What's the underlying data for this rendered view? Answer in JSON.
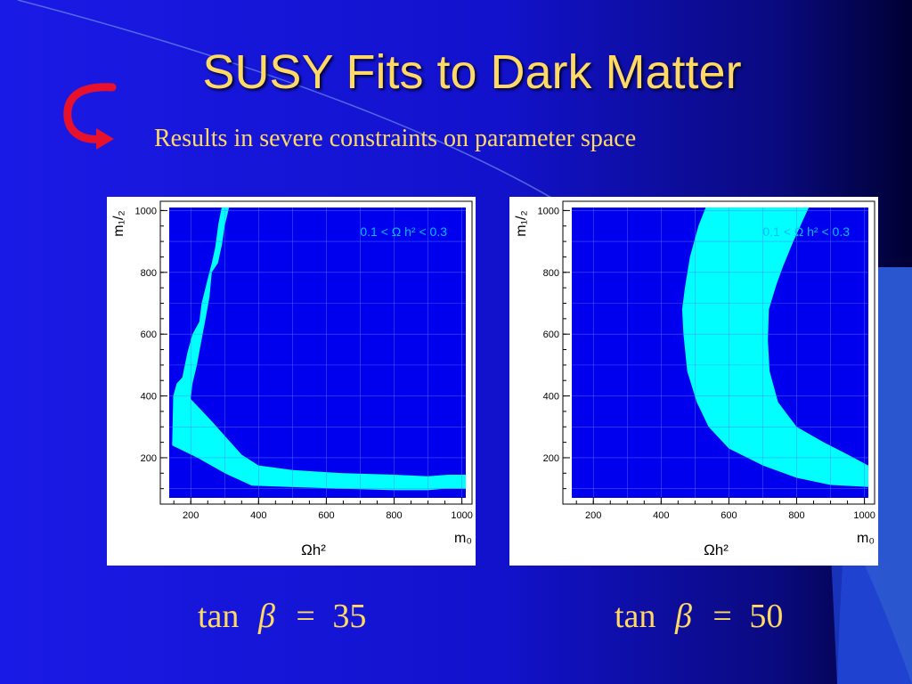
{
  "slide": {
    "title": "SUSY Fits to Dark Matter",
    "subtitle": "Results in severe constraints on parameter space"
  },
  "icons": {
    "arrow": "red-curved-arrow-icon"
  },
  "colors": {
    "title": "#ffd966",
    "plot_background": "#0000ee",
    "allowed_band": "#00ffff",
    "annotation": "#00bfff",
    "arrow": "#e8112d"
  },
  "chart_data": [
    {
      "type": "area",
      "title": "",
      "annotation": "0.1 < Ω h² < 0.3",
      "xlabel": "m₀",
      "ylabel": "m₁/₂",
      "bottom_label": "Ωh²",
      "xlim": [
        110,
        1030
      ],
      "ylim": [
        50,
        1030
      ],
      "xticks": [
        200,
        400,
        600,
        800,
        1000
      ],
      "yticks": [
        200,
        400,
        600,
        800,
        1000
      ],
      "grid": true,
      "caption": {
        "prefix": "tan",
        "symbol": "β",
        "equals": "=",
        "value": "35"
      },
      "band": {
        "name": "",
        "outer": [
          [
            145,
            240
          ],
          [
            148,
            400
          ],
          [
            158,
            440
          ],
          [
            175,
            460
          ],
          [
            190,
            540
          ],
          [
            205,
            600
          ],
          [
            225,
            640
          ],
          [
            232,
            700
          ],
          [
            250,
            780
          ],
          [
            262,
            830
          ],
          [
            272,
            880
          ],
          [
            282,
            960
          ],
          [
            293,
            1020
          ]
        ],
        "inner": [
          [
            315,
            1020
          ],
          [
            300,
            950
          ],
          [
            292,
            890
          ],
          [
            280,
            830
          ],
          [
            262,
            800
          ],
          [
            255,
            720
          ],
          [
            242,
            640
          ],
          [
            228,
            560
          ],
          [
            218,
            500
          ],
          [
            205,
            440
          ],
          [
            200,
            390
          ],
          [
            260,
            320
          ],
          [
            350,
            210
          ],
          [
            400,
            175
          ],
          [
            500,
            160
          ],
          [
            650,
            150
          ],
          [
            800,
            145
          ],
          [
            900,
            140
          ],
          [
            960,
            145
          ],
          [
            1030,
            145
          ]
        ],
        "lower": [
          [
            1030,
            100
          ],
          [
            950,
            100
          ],
          [
            900,
            95
          ],
          [
            800,
            95
          ],
          [
            650,
            100
          ],
          [
            500,
            105
          ],
          [
            380,
            110
          ],
          [
            300,
            150
          ],
          [
            220,
            200
          ],
          [
            145,
            240
          ]
        ]
      }
    },
    {
      "type": "area",
      "title": "",
      "annotation": "0.1 < Ω h² < 0.3",
      "xlabel": "m₀",
      "ylabel": "m₁/₂",
      "bottom_label": "Ωh²",
      "xlim": [
        110,
        1030
      ],
      "ylim": [
        50,
        1030
      ],
      "xticks": [
        200,
        400,
        600,
        800,
        1000
      ],
      "yticks": [
        200,
        400,
        600,
        800,
        1000
      ],
      "grid": true,
      "caption": {
        "prefix": "tan",
        "symbol": "β",
        "equals": "=",
        "value": "50"
      },
      "band": {
        "name": "",
        "left_edge": [
          [
            535,
            1020
          ],
          [
            510,
            950
          ],
          [
            485,
            850
          ],
          [
            470,
            750
          ],
          [
            462,
            680
          ],
          [
            466,
            600
          ],
          [
            477,
            480
          ],
          [
            505,
            380
          ],
          [
            540,
            300
          ],
          [
            600,
            230
          ],
          [
            700,
            175
          ],
          [
            800,
            135
          ],
          [
            900,
            112
          ],
          [
            1020,
            105
          ]
        ],
        "right_edge": [
          [
            1020,
            170
          ],
          [
            960,
            205
          ],
          [
            880,
            250
          ],
          [
            800,
            300
          ],
          [
            745,
            380
          ],
          [
            720,
            480
          ],
          [
            715,
            580
          ],
          [
            718,
            680
          ],
          [
            740,
            760
          ],
          [
            760,
            820
          ],
          [
            790,
            900
          ],
          [
            815,
            960
          ],
          [
            840,
            1020
          ]
        ]
      }
    }
  ],
  "tanbeta_left": {
    "prefix": "tan",
    "symbol": "β",
    "equals": "=",
    "value": "35"
  },
  "tanbeta_right": {
    "prefix": "tan",
    "symbol": "β",
    "equals": "=",
    "value": "50"
  }
}
